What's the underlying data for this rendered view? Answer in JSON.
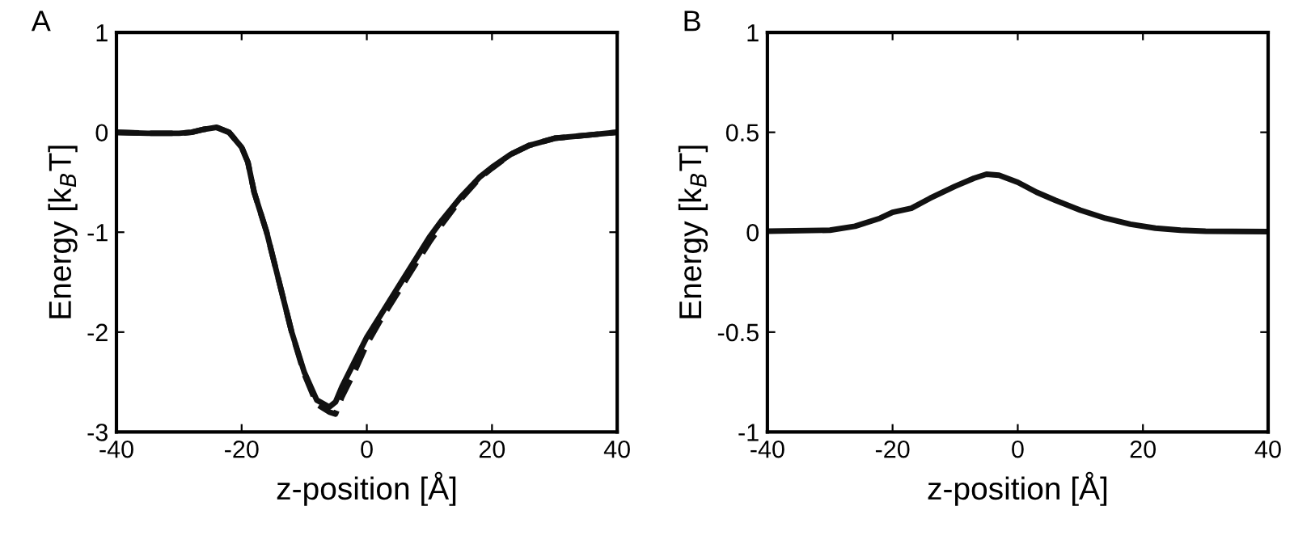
{
  "chart_data": [
    {
      "type": "line",
      "title": "A",
      "xlabel": "z-position [Å]",
      "ylabel": "Energy [k$_{B}$T]",
      "xlim": [
        -40,
        40
      ],
      "ylim": [
        -3,
        1
      ],
      "xticks": [
        -40,
        -20,
        0,
        20,
        40
      ],
      "yticks": [
        -3,
        -2,
        -1,
        0,
        1
      ],
      "grid": false,
      "legend": false,
      "series": [
        {
          "color": "#111111",
          "line_style": "solid",
          "x": [
            -40,
            -35,
            -30,
            -28,
            -26,
            -24,
            -22,
            -20,
            -19,
            -18,
            -16,
            -14,
            -12,
            -10,
            -8,
            -6,
            -5,
            -4,
            -2,
            0,
            2,
            5,
            8,
            10,
            12,
            15,
            18,
            20,
            23,
            26,
            30,
            35,
            40
          ],
          "values": [
            0,
            -0.01,
            -0.01,
            0,
            0.03,
            0.05,
            0,
            -0.15,
            -0.3,
            -0.6,
            -1.0,
            -1.5,
            -2.0,
            -2.4,
            -2.68,
            -2.75,
            -2.7,
            -2.55,
            -2.3,
            -2.05,
            -1.85,
            -1.55,
            -1.25,
            -1.05,
            -0.88,
            -0.65,
            -0.45,
            -0.35,
            -0.22,
            -0.13,
            -0.06,
            -0.03,
            0
          ]
        },
        {
          "color": "#111111",
          "line_style": "dashed",
          "x": [
            -40,
            -35,
            -30,
            -28,
            -26,
            -24,
            -22,
            -20,
            -19,
            -18,
            -16,
            -14,
            -12,
            -10,
            -8,
            -6,
            -5,
            -4,
            -2,
            0,
            2,
            5,
            8,
            10,
            12,
            15,
            18,
            20,
            23,
            26,
            30,
            35,
            40
          ],
          "values": [
            0,
            -0.01,
            -0.01,
            0,
            0.03,
            0.05,
            0,
            -0.15,
            -0.3,
            -0.6,
            -1.0,
            -1.5,
            -2.0,
            -2.42,
            -2.72,
            -2.8,
            -2.82,
            -2.65,
            -2.4,
            -2.12,
            -1.9,
            -1.6,
            -1.3,
            -1.1,
            -0.92,
            -0.67,
            -0.46,
            -0.36,
            -0.22,
            -0.13,
            -0.06,
            -0.03,
            0
          ]
        }
      ]
    },
    {
      "type": "line",
      "title": "B",
      "xlabel": "z-position [Å]",
      "ylabel": "Energy [k$_{B}$T]",
      "xlim": [
        -40,
        40
      ],
      "ylim": [
        -1,
        1
      ],
      "xticks": [
        -40,
        -20,
        0,
        20,
        40
      ],
      "yticks": [
        -1,
        -0.5,
        0,
        0.5,
        1
      ],
      "grid": false,
      "legend": false,
      "series": [
        {
          "color": "#111111",
          "line_style": "solid",
          "x": [
            -40,
            -30,
            -26,
            -22,
            -20,
            -17,
            -14,
            -10,
            -7,
            -5,
            -3,
            0,
            3,
            6,
            10,
            14,
            18,
            22,
            26,
            30,
            40
          ],
          "values": [
            0.005,
            0.01,
            0.03,
            0.07,
            0.1,
            0.12,
            0.17,
            0.23,
            0.27,
            0.29,
            0.285,
            0.25,
            0.2,
            0.16,
            0.11,
            0.07,
            0.04,
            0.02,
            0.01,
            0.005,
            0.003
          ]
        }
      ]
    }
  ]
}
